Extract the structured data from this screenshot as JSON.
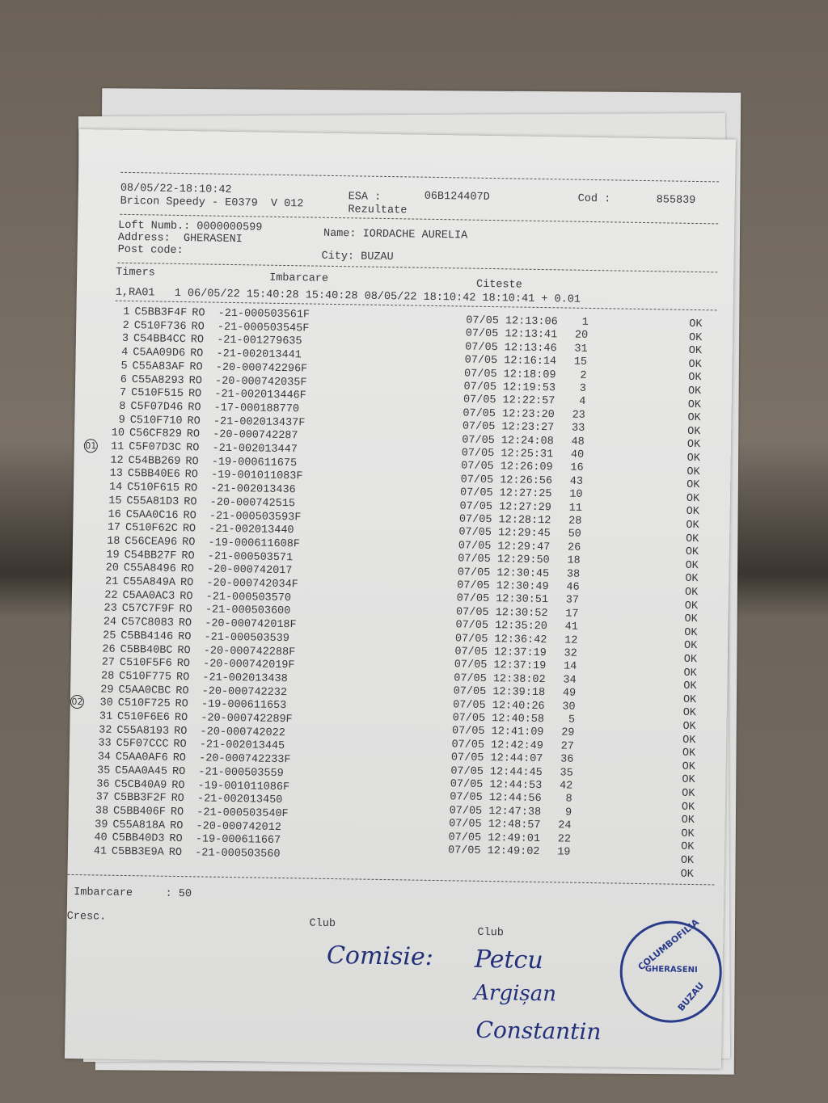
{
  "header": {
    "datetime": "08/05/22-18:10:42",
    "device": "Bricon Speedy - E0379  V 012",
    "esa_label": "ESA :",
    "esa_value": "06B124407D",
    "report": "Rezultate",
    "cod_label": "Cod :",
    "cod_value": "855839"
  },
  "loft": {
    "loft_numb": "Loft Numb.: 0000000599",
    "name": "Name: IORDACHE AURELIA",
    "address": "Address:  GHERASENI",
    "post_code": "Post code:",
    "city": "City: BUZAU"
  },
  "timers": {
    "label": "Timers",
    "imbarcare_label": "Imbarcare",
    "citeste_label": "Citeste",
    "line": "1,RA01   1 06/05/22 15:40:28 15:40:28 08/05/22 18:10:42 18:10:41 + 0.01"
  },
  "rings": [
    {
      "n": "1",
      "chip": "C5BB3F4F",
      "ring": "RO  -21-000503561F"
    },
    {
      "n": "2",
      "chip": "C510F736",
      "ring": "RO  -21-000503545F"
    },
    {
      "n": "3",
      "chip": "C54BB4CC",
      "ring": "RO  -21-001279635"
    },
    {
      "n": "4",
      "chip": "C5AA09D6",
      "ring": "RO  -21-002013441"
    },
    {
      "n": "5",
      "chip": "C55A83AF",
      "ring": "RO  -20-000742296F"
    },
    {
      "n": "6",
      "chip": "C55A8293",
      "ring": "RO  -20-000742035F"
    },
    {
      "n": "7",
      "chip": "C510F515",
      "ring": "RO  -21-002013446F"
    },
    {
      "n": "8",
      "chip": "C5F07D46",
      "ring": "RO  -17-000188770"
    },
    {
      "n": "9",
      "chip": "C510F710",
      "ring": "RO  -21-002013437F"
    },
    {
      "n": "10",
      "chip": "C56CF829",
      "ring": "RO  -20-000742287"
    },
    {
      "n": "11",
      "chip": "C5F07D3C",
      "ring": "RO  -21-002013447"
    },
    {
      "n": "12",
      "chip": "C54BB269",
      "ring": "RO  -19-000611675"
    },
    {
      "n": "13",
      "chip": "C5BB40E6",
      "ring": "RO  -19-001011083F"
    },
    {
      "n": "14",
      "chip": "C510F615",
      "ring": "RO  -21-002013436"
    },
    {
      "n": "15",
      "chip": "C55A81D3",
      "ring": "RO  -20-000742515"
    },
    {
      "n": "16",
      "chip": "C5AA0C16",
      "ring": "RO  -21-000503593F"
    },
    {
      "n": "17",
      "chip": "C510F62C",
      "ring": "RO  -21-002013440"
    },
    {
      "n": "18",
      "chip": "C56CEA96",
      "ring": "RO  -19-000611608F"
    },
    {
      "n": "19",
      "chip": "C54BB27F",
      "ring": "RO  -21-000503571"
    },
    {
      "n": "20",
      "chip": "C55A8496",
      "ring": "RO  -20-000742017"
    },
    {
      "n": "21",
      "chip": "C55A849A",
      "ring": "RO  -20-000742034F"
    },
    {
      "n": "22",
      "chip": "C5AA0AC3",
      "ring": "RO  -21-000503570"
    },
    {
      "n": "23",
      "chip": "C57C7F9F",
      "ring": "RO  -21-000503600"
    },
    {
      "n": "24",
      "chip": "C57C8083",
      "ring": "RO  -20-000742018F"
    },
    {
      "n": "25",
      "chip": "C5BB4146",
      "ring": "RO  -21-000503539"
    },
    {
      "n": "26",
      "chip": "C5BB40BC",
      "ring": "RO  -20-000742288F"
    },
    {
      "n": "27",
      "chip": "C510F5F6",
      "ring": "RO  -20-000742019F"
    },
    {
      "n": "28",
      "chip": "C510F775",
      "ring": "RO  -21-002013438"
    },
    {
      "n": "29",
      "chip": "C5AA0CBC",
      "ring": "RO  -20-000742232"
    },
    {
      "n": "30",
      "chip": "C510F725",
      "ring": "RO  -19-000611653"
    },
    {
      "n": "31",
      "chip": "C510F6E6",
      "ring": "RO  -20-000742289F"
    },
    {
      "n": "32",
      "chip": "C55A8193",
      "ring": "RO  -20-000742022"
    },
    {
      "n": "33",
      "chip": "C5F07CCC",
      "ring": "RO  -21-002013445"
    },
    {
      "n": "34",
      "chip": "C5AA0AF6",
      "ring": "RO  -20-000742233F"
    },
    {
      "n": "35",
      "chip": "C5AA0A45",
      "ring": "RO  -21-000503559"
    },
    {
      "n": "36",
      "chip": "C5CB40A9",
      "ring": "RO  -19-001011086F"
    },
    {
      "n": "37",
      "chip": "C5BB3F2F",
      "ring": "RO  -21-002013450"
    },
    {
      "n": "38",
      "chip": "C5BB406F",
      "ring": "RO  -21-000503540F"
    },
    {
      "n": "39",
      "chip": "C55A818A",
      "ring": "RO  -20-000742012"
    },
    {
      "n": "40",
      "chip": "C5BB40D3",
      "ring": "RO  -19-000611667"
    },
    {
      "n": "41",
      "chip": "C5BB3E9A",
      "ring": "RO  -21-000503560"
    }
  ],
  "times": [
    {
      "t": "07/05 12:13:06",
      "p": "1"
    },
    {
      "t": "07/05 12:13:41",
      "p": "20"
    },
    {
      "t": "07/05 12:13:46",
      "p": "31"
    },
    {
      "t": "07/05 12:16:14",
      "p": "15"
    },
    {
      "t": "07/05 12:18:09",
      "p": "2"
    },
    {
      "t": "07/05 12:19:53",
      "p": "3"
    },
    {
      "t": "07/05 12:22:57",
      "p": "4"
    },
    {
      "t": "07/05 12:23:20",
      "p": "23"
    },
    {
      "t": "07/05 12:23:27",
      "p": "33"
    },
    {
      "t": "07/05 12:24:08",
      "p": "48"
    },
    {
      "t": "07/05 12:25:31",
      "p": "40"
    },
    {
      "t": "07/05 12:26:09",
      "p": "16"
    },
    {
      "t": "07/05 12:26:56",
      "p": "43"
    },
    {
      "t": "07/05 12:27:25",
      "p": "10"
    },
    {
      "t": "07/05 12:27:29",
      "p": "11"
    },
    {
      "t": "07/05 12:28:12",
      "p": "28"
    },
    {
      "t": "07/05 12:29:45",
      "p": "50"
    },
    {
      "t": "07/05 12:29:47",
      "p": "26"
    },
    {
      "t": "07/05 12:29:50",
      "p": "18"
    },
    {
      "t": "07/05 12:30:45",
      "p": "38"
    },
    {
      "t": "07/05 12:30:49",
      "p": "46"
    },
    {
      "t": "07/05 12:30:51",
      "p": "37"
    },
    {
      "t": "07/05 12:30:52",
      "p": "17"
    },
    {
      "t": "07/05 12:35:20",
      "p": "41"
    },
    {
      "t": "07/05 12:36:42",
      "p": "12"
    },
    {
      "t": "07/05 12:37:19",
      "p": "32"
    },
    {
      "t": "07/05 12:37:19",
      "p": "14"
    },
    {
      "t": "07/05 12:38:02",
      "p": "34"
    },
    {
      "t": "07/05 12:39:18",
      "p": "49"
    },
    {
      "t": "07/05 12:40:26",
      "p": "30"
    },
    {
      "t": "07/05 12:40:58",
      "p": "5"
    },
    {
      "t": "07/05 12:41:09",
      "p": "29"
    },
    {
      "t": "07/05 12:42:49",
      "p": "27"
    },
    {
      "t": "07/05 12:44:07",
      "p": "36"
    },
    {
      "t": "07/05 12:44:45",
      "p": "35"
    },
    {
      "t": "07/05 12:44:53",
      "p": "42"
    },
    {
      "t": "07/05 12:44:56",
      "p": "8"
    },
    {
      "t": "07/05 12:47:38",
      "p": "9"
    },
    {
      "t": "07/05 12:48:57",
      "p": "24"
    },
    {
      "t": "07/05 12:49:01",
      "p": "22"
    },
    {
      "t": "07/05 12:49:02",
      "p": "19"
    }
  ],
  "status_ok": "OK",
  "status_count": 42,
  "annotations": {
    "row11": "01",
    "row30": "02"
  },
  "footer": {
    "imbarcare": "Imbarcare     : 50",
    "cresc": "Cresc.",
    "club1": "Club",
    "club2": "Club"
  },
  "handwriting": {
    "comisie": "Comisie:",
    "sig1": "Petcu",
    "sig2": "Argișan",
    "sig3": "Constantin"
  },
  "stamp": {
    "top": "COLUMBOFILIA",
    "middle": "GHERASENI",
    "bottom": "BUZAU"
  }
}
